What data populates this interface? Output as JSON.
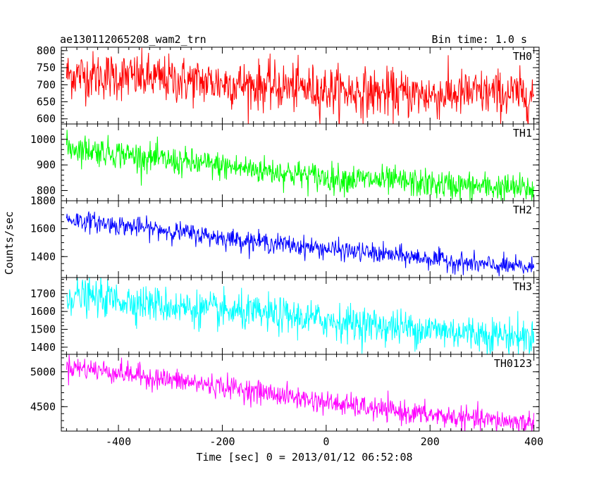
{
  "header": {
    "title": "ae130112065208_wam2_trn",
    "bin_time": "Bin time: 1.0 s"
  },
  "axes": {
    "xlabel": "Time [sec] 0 = 2013/01/12 06:52:08",
    "ylabel": "Counts/sec"
  },
  "chart_data": {
    "type": "line",
    "title": "ae130112065208_wam2_trn",
    "xlabel": "Time [sec] 0 = 2013/01/12 06:52:08",
    "ylabel": "Counts/sec",
    "xlim": [
      -510,
      410
    ],
    "x_ticks": [
      -400,
      -200,
      0,
      200,
      400
    ],
    "x_range_data": [
      -500,
      400
    ],
    "bin_seconds": 1.0,
    "grid": false,
    "legend": "none",
    "panels": [
      {
        "name": "TH0",
        "color": "#ff0000",
        "ylim": [
          585,
          810
        ],
        "yticks": [
          600,
          650,
          700,
          750,
          800
        ],
        "trend": [
          [
            -500,
            730
          ],
          [
            -400,
            725
          ],
          [
            -300,
            715
          ],
          [
            -200,
            705
          ],
          [
            -100,
            695
          ],
          [
            0,
            685
          ],
          [
            100,
            675
          ],
          [
            200,
            670
          ],
          [
            300,
            675
          ],
          [
            400,
            670
          ]
        ],
        "noise_sd": 35
      },
      {
        "name": "TH1",
        "color": "#00ff00",
        "ylim": [
          760,
          1060
        ],
        "yticks": [
          800,
          900,
          1000
        ],
        "trend": [
          [
            -500,
            970
          ],
          [
            -400,
            945
          ],
          [
            -300,
            915
          ],
          [
            -200,
            895
          ],
          [
            -100,
            875
          ],
          [
            0,
            850
          ],
          [
            100,
            840
          ],
          [
            200,
            825
          ],
          [
            300,
            815
          ],
          [
            400,
            805
          ]
        ],
        "noise_sd": 28
      },
      {
        "name": "TH2",
        "color": "#0000ff",
        "ylim": [
          1250,
          1800
        ],
        "yticks": [
          1400,
          1600,
          1800
        ],
        "trend": [
          [
            -500,
            1670
          ],
          [
            -400,
            1625
          ],
          [
            -300,
            1585
          ],
          [
            -200,
            1535
          ],
          [
            -100,
            1495
          ],
          [
            0,
            1455
          ],
          [
            100,
            1420
          ],
          [
            200,
            1385
          ],
          [
            300,
            1340
          ],
          [
            400,
            1320
          ]
        ],
        "noise_sd": 35
      },
      {
        "name": "TH3",
        "color": "#00ffff",
        "ylim": [
          1360,
          1790
        ],
        "yticks": [
          1400,
          1500,
          1600,
          1700
        ],
        "trend": [
          [
            -500,
            1690
          ],
          [
            -400,
            1665
          ],
          [
            -300,
            1630
          ],
          [
            -200,
            1600
          ],
          [
            -100,
            1580
          ],
          [
            0,
            1550
          ],
          [
            100,
            1520
          ],
          [
            200,
            1500
          ],
          [
            300,
            1475
          ],
          [
            400,
            1455
          ]
        ],
        "noise_sd": 50
      },
      {
        "name": "TH0123",
        "color": "#ff00ff",
        "ylim": [
          4150,
          5250
        ],
        "yticks": [
          4500,
          5000
        ],
        "trend": [
          [
            -500,
            5080
          ],
          [
            -400,
            4990
          ],
          [
            -300,
            4880
          ],
          [
            -200,
            4790
          ],
          [
            -100,
            4680
          ],
          [
            0,
            4560
          ],
          [
            100,
            4460
          ],
          [
            200,
            4380
          ],
          [
            300,
            4310
          ],
          [
            400,
            4270
          ]
        ],
        "noise_sd": 80
      }
    ]
  }
}
